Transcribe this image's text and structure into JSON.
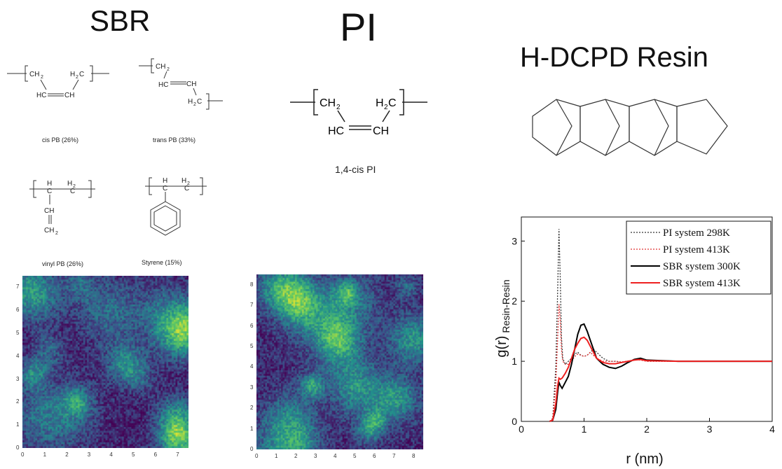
{
  "titles": {
    "sbr": "SBR",
    "pi": "PI",
    "resin": "H-DCPD Resin"
  },
  "sbr_structures": [
    {
      "caption": "cis PB (26%)"
    },
    {
      "caption": "trans PB (33%)"
    },
    {
      "caption": "vinyl PB (26%)"
    },
    {
      "caption": "Styrene (15%)"
    }
  ],
  "pi_structure": {
    "caption": "1,4-cis PI"
  },
  "chem_labels": {
    "ch2": "CH",
    "h2c": "H",
    "hc": "HC",
    "ch": "CH",
    "sub2": "2",
    "h": "H",
    "c": "C"
  },
  "heatmaps": [
    {
      "name": "sbr-density-map",
      "colormap": "viridis",
      "xticks": [
        "0",
        "1",
        "2",
        "3",
        "4",
        "5",
        "6",
        "7"
      ],
      "yticks": [
        "0",
        "1",
        "2",
        "3",
        "4",
        "5",
        "6",
        "7"
      ]
    },
    {
      "name": "pi-density-map",
      "colormap": "viridis",
      "xticks": [
        "0",
        "1",
        "2",
        "3",
        "4",
        "5",
        "6",
        "7",
        "8"
      ],
      "yticks": [
        "0",
        "1",
        "2",
        "3",
        "4",
        "5",
        "6",
        "7",
        "8"
      ]
    }
  ],
  "chart_data": {
    "type": "line",
    "title": "",
    "xlabel": "r (nm)",
    "ylabel_main": "g(r)",
    "ylabel_sub": "Resin-Resin",
    "xlim": [
      0,
      4
    ],
    "ylim": [
      0,
      3.4
    ],
    "xticks": [
      0,
      1,
      2,
      3,
      4
    ],
    "yticks": [
      0,
      1,
      2,
      3
    ],
    "legend_position": "top-right",
    "series": [
      {
        "name": "PI system 298K",
        "color": "#333333",
        "style": "dotted",
        "x": [
          0.45,
          0.5,
          0.55,
          0.58,
          0.6,
          0.62,
          0.64,
          0.66,
          0.7,
          0.75,
          0.8,
          0.85,
          0.9,
          0.95,
          1.0,
          1.05,
          1.1,
          1.15,
          1.2,
          1.3,
          1.4,
          1.5,
          1.6,
          1.8,
          1.9,
          2.0,
          2.5,
          3.0,
          3.5,
          4.0
        ],
        "y": [
          0.0,
          0.05,
          0.9,
          2.2,
          3.2,
          2.4,
          1.4,
          1.05,
          0.95,
          1.0,
          1.05,
          1.12,
          1.15,
          1.1,
          1.08,
          1.1,
          1.15,
          1.2,
          1.15,
          1.05,
          1.0,
          1.0,
          0.98,
          1.02,
          1.03,
          1.0,
          1.0,
          1.0,
          1.0,
          1.0
        ]
      },
      {
        "name": "PI system 413K",
        "color": "#e03030",
        "style": "dotted",
        "x": [
          0.45,
          0.5,
          0.55,
          0.58,
          0.6,
          0.62,
          0.64,
          0.66,
          0.7,
          0.75,
          0.8,
          0.85,
          0.9,
          0.95,
          1.0,
          1.05,
          1.1,
          1.15,
          1.2,
          1.3,
          1.4,
          1.5,
          1.6,
          1.8,
          1.9,
          2.0,
          2.5,
          3.0,
          3.5,
          4.0
        ],
        "y": [
          0.0,
          0.05,
          0.6,
          1.4,
          1.95,
          1.7,
          1.2,
          1.0,
          0.95,
          0.95,
          1.0,
          1.08,
          1.12,
          1.1,
          1.08,
          1.1,
          1.15,
          1.1,
          1.05,
          1.0,
          1.0,
          1.0,
          0.99,
          1.02,
          1.02,
          1.0,
          1.0,
          1.0,
          1.0,
          1.0
        ]
      },
      {
        "name": "SBR system 300K",
        "color": "#000000",
        "style": "solid",
        "x": [
          0.45,
          0.5,
          0.55,
          0.58,
          0.6,
          0.62,
          0.65,
          0.7,
          0.75,
          0.8,
          0.85,
          0.9,
          0.95,
          1.0,
          1.05,
          1.1,
          1.15,
          1.2,
          1.3,
          1.4,
          1.5,
          1.6,
          1.7,
          1.8,
          1.9,
          2.0,
          2.5,
          3.0,
          3.5,
          4.0
        ],
        "y": [
          0.0,
          0.02,
          0.2,
          0.5,
          0.65,
          0.6,
          0.55,
          0.65,
          0.75,
          0.95,
          1.2,
          1.45,
          1.6,
          1.62,
          1.5,
          1.35,
          1.2,
          1.05,
          0.95,
          0.9,
          0.88,
          0.92,
          0.98,
          1.03,
          1.05,
          1.02,
          1.0,
          1.0,
          1.0,
          1.0
        ]
      },
      {
        "name": "SBR system 413K",
        "color": "#ee2020",
        "style": "solid",
        "x": [
          0.45,
          0.5,
          0.55,
          0.58,
          0.6,
          0.62,
          0.65,
          0.7,
          0.75,
          0.8,
          0.85,
          0.9,
          0.95,
          1.0,
          1.05,
          1.1,
          1.15,
          1.2,
          1.3,
          1.4,
          1.5,
          1.6,
          1.7,
          1.8,
          1.9,
          2.0,
          2.5,
          3.0,
          3.5,
          4.0
        ],
        "y": [
          0.0,
          0.02,
          0.3,
          0.6,
          0.72,
          0.7,
          0.72,
          0.8,
          0.9,
          1.05,
          1.2,
          1.3,
          1.38,
          1.4,
          1.35,
          1.25,
          1.15,
          1.05,
          0.98,
          0.96,
          0.96,
          0.98,
          1.0,
          1.02,
          1.03,
          1.01,
          1.0,
          1.0,
          1.0,
          1.0
        ]
      }
    ]
  }
}
